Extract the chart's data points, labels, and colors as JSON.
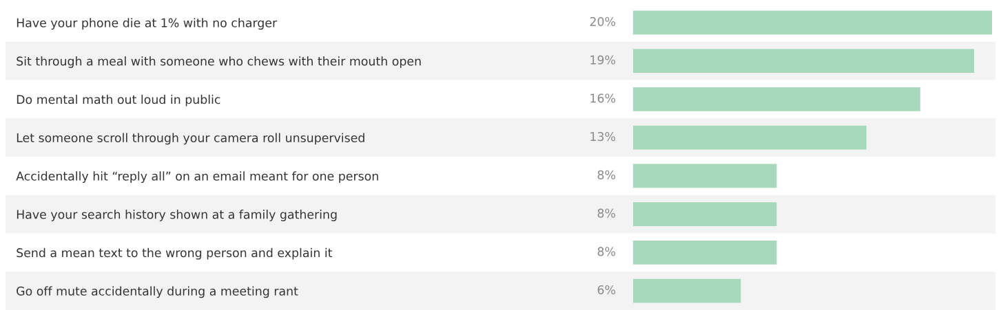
{
  "chart_data": {
    "type": "bar",
    "orientation": "horizontal",
    "categories": [
      "Have your phone die at 1% with no charger",
      "Sit through a meal with someone who chews with their mouth open",
      "Do mental math out loud in public",
      "Let someone scroll through your camera roll unsupervised",
      "Accidentally hit “reply all” on an email meant for one person",
      "Have your search history shown at a family gathering",
      "Send a mean text to the wrong person and explain it",
      "Go off mute accidentally during a meeting rant"
    ],
    "values": [
      20,
      19,
      16,
      13,
      8,
      8,
      8,
      6
    ],
    "value_labels": [
      "20%",
      "19%",
      "16%",
      "13%",
      "8%",
      "8%",
      "8%",
      "6%"
    ],
    "color": "#a8d8bb",
    "grid": false,
    "legend": false,
    "tick_labels": "y"
  }
}
